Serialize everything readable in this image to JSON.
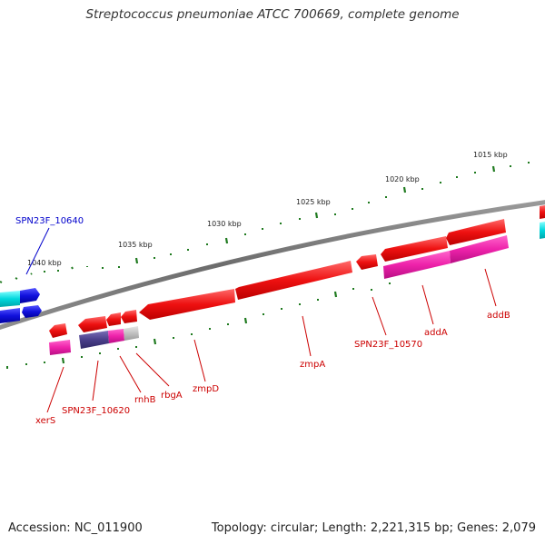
{
  "header": {
    "title": "Streptococcus pneumoniae ATCC 700669, complete genome"
  },
  "footer": {
    "accession": "Accession: NC_011900",
    "topology": "Topology: circular; Length: 2,221,315 bp; Genes: 2,079"
  },
  "colors": {
    "backbone": "#7a7a7a",
    "tick": "#1f7a1f",
    "label_red": "#cc0000",
    "label_blue": "#0000cc",
    "gene_red": "#ee1111",
    "gene_magenta": "#ee22aa",
    "gene_blue": "#1111dd",
    "gene_cyan": "#00d8dd",
    "gene_purple": "#4a3f8a",
    "gene_grey": "#c0c0c0"
  },
  "ruler": {
    "ticks": [
      "1040 kbp",
      "1035 kbp",
      "1030 kbp",
      "1025 kbp",
      "1020 kbp",
      "1015 kbp"
    ]
  },
  "genes": {
    "labels": [
      "SPN23F_10640",
      "xerS",
      "SPN23F_10620",
      "rnhB",
      "rbgA",
      "zmpD",
      "zmpA",
      "SPN23F_10570",
      "addA",
      "addB"
    ]
  }
}
